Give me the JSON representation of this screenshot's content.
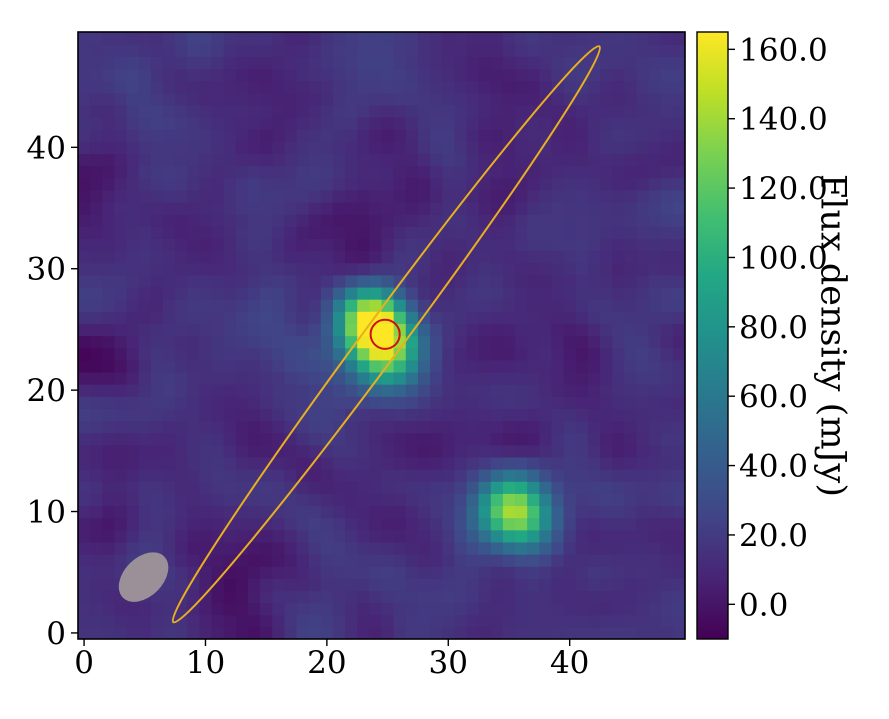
{
  "chart_data": {
    "type": "heatmap",
    "title": "",
    "xlabel": "",
    "ylabel": "",
    "xlim": [
      -0.5,
      49.5
    ],
    "ylim": [
      -0.5,
      49.5
    ],
    "xticks": [
      0,
      10,
      20,
      30,
      40
    ],
    "yticks": [
      0,
      10,
      20,
      30,
      40
    ],
    "x_tick_labels": [
      "0",
      "10",
      "20",
      "30",
      "40"
    ],
    "y_tick_labels": [
      "0",
      "10",
      "20",
      "30",
      "40"
    ],
    "grid": false,
    "colormap": "viridis",
    "colorbar": {
      "label": "Flux density (mJy)",
      "range": [
        -10,
        165
      ],
      "ticks": [
        0,
        20,
        40,
        60,
        80,
        100,
        120,
        140,
        160
      ],
      "tick_labels": [
        "0.0",
        "20.0",
        "40.0",
        "60.0",
        "80.0",
        "100.0",
        "120.0",
        "140.0",
        "160.0"
      ]
    },
    "background_level": 12,
    "sources": [
      {
        "x": 23.8,
        "y": 25.5,
        "peak": 165,
        "sx": 2.2,
        "sy": 1.9,
        "rot": -50
      },
      {
        "x": 25.0,
        "y": 23.0,
        "peak": 70,
        "sx": 2.0,
        "sy": 2.0,
        "rot": 0
      },
      {
        "x": 35.5,
        "y": 10.0,
        "peak": 128,
        "sx": 2.3,
        "sy": 2.0,
        "rot": -50
      },
      {
        "x": 19.0,
        "y": 22.0,
        "peak": 22,
        "sx": 4.0,
        "sy": 2.0,
        "rot": -50
      }
    ],
    "overlays": [
      {
        "shape": "ellipse",
        "color": "#e8b01f",
        "center": [
          24.9,
          24.6
        ],
        "semi_major": 29.5,
        "semi_minor": 1.6,
        "angle_deg": -53.5,
        "fill": "none"
      },
      {
        "shape": "circle",
        "color": "#d01010",
        "center": [
          24.8,
          24.6
        ],
        "radius": 1.2,
        "fill": "none"
      },
      {
        "shape": "ellipse",
        "color": "#9c9098",
        "center": [
          4.9,
          4.6
        ],
        "semi_major": 2.4,
        "semi_minor": 1.6,
        "angle_deg": -45,
        "fill": "#9c9098"
      }
    ]
  }
}
